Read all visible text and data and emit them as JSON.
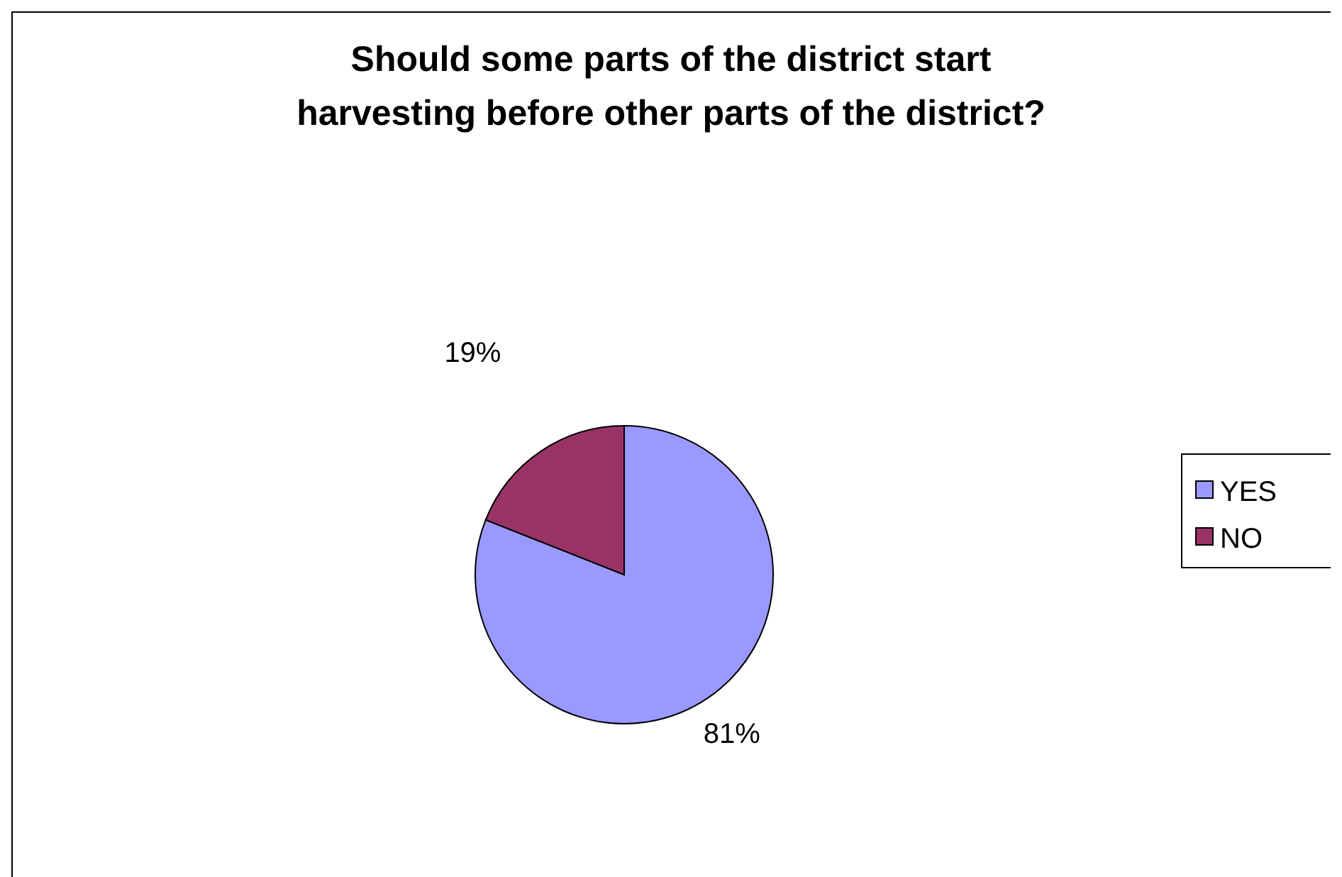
{
  "chart_data": {
    "type": "pie",
    "title": "Should some parts of the district start harvesting before other parts of the district?",
    "categories": [
      "YES",
      "NO"
    ],
    "values": [
      81,
      19
    ],
    "colors": [
      "#9999ff",
      "#993366"
    ],
    "value_labels": [
      "81%",
      "19%"
    ],
    "legend": "right"
  }
}
